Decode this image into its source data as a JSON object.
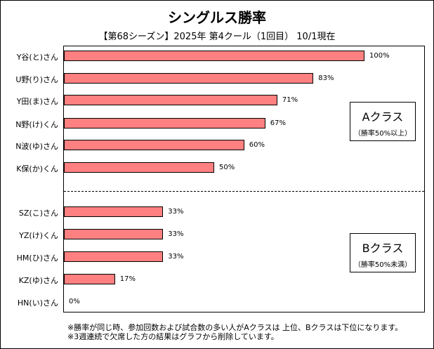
{
  "chart_data": {
    "type": "bar",
    "orientation": "horizontal",
    "title": "シングルス勝率",
    "subtitle": "【第68シーズン】2025年 第4クール（1回目） 10/1現在",
    "categories": [
      "Y谷(と)さん",
      "U野(り)さん",
      "Y田(ま)さん",
      "N野(け)くん",
      "N波(ゆ)さん",
      "K保(か)くん",
      "SZ(こ)さん",
      "YZ(け)くん",
      "HM(ひ)さん",
      "KZ(ゆ)さん",
      "HN(い)さん"
    ],
    "values": [
      100,
      83,
      71,
      67,
      60,
      50,
      33,
      33,
      33,
      17,
      0
    ],
    "value_labels": [
      "100%",
      "83%",
      "71%",
      "67%",
      "60%",
      "50%",
      "33%",
      "33%",
      "33%",
      "17%",
      "0%"
    ],
    "xlim": [
      0,
      120
    ],
    "bar_color": "#ff8080",
    "groups": [
      {
        "name": "Aクラス",
        "criteria": "（勝率50%以上）"
      },
      {
        "name": "Bクラス",
        "criteria": "（勝率50%未満）"
      }
    ]
  },
  "notes": [
    "※勝率が同じ時、参加回数および試合数の多い人がAクラスは 上位、Bクラスは下位になります。",
    "※3週連続で欠席した方の結果はグラフから削除しています。"
  ]
}
